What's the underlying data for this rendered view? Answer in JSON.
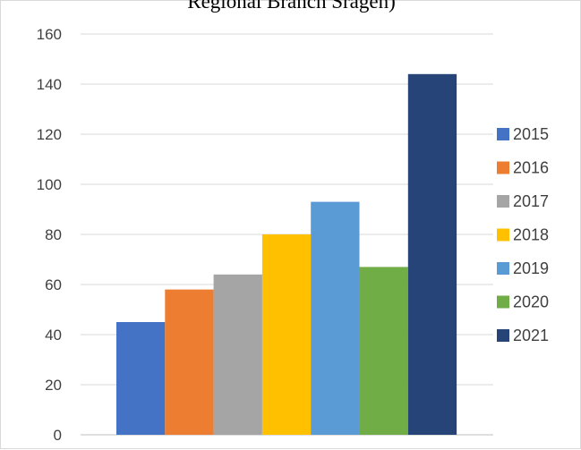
{
  "chart_data": {
    "type": "bar",
    "title": "Regional Branch Sragen)",
    "xlabel": "",
    "ylabel": "",
    "ylim": [
      0,
      160
    ],
    "yticks": [
      0,
      20,
      40,
      60,
      80,
      100,
      120,
      140,
      160
    ],
    "ytick_labels": [
      "0",
      "20",
      "40",
      "60",
      "80",
      "100",
      "120",
      "140",
      "160"
    ],
    "grid": true,
    "legend_position": "right",
    "series": [
      {
        "name": "2015",
        "value": 45,
        "color": "#4472C4"
      },
      {
        "name": "2016",
        "value": 58,
        "color": "#ED7D31"
      },
      {
        "name": "2017",
        "value": 64,
        "color": "#A5A5A5"
      },
      {
        "name": "2018",
        "value": 80,
        "color": "#FFC000"
      },
      {
        "name": "2019",
        "value": 93,
        "color": "#5B9BD5"
      },
      {
        "name": "2020",
        "value": 67,
        "color": "#70AD47"
      },
      {
        "name": "2021",
        "value": 144,
        "color": "#264478"
      }
    ]
  }
}
